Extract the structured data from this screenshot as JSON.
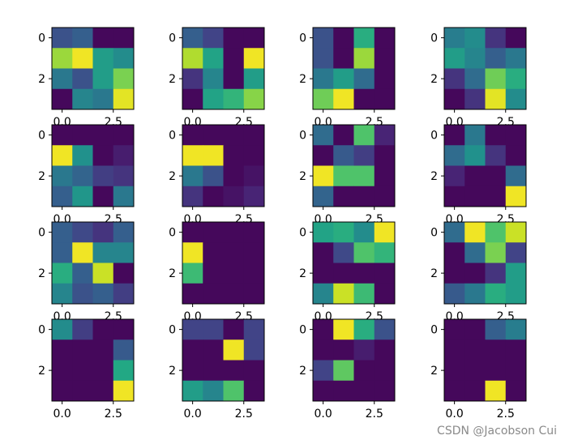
{
  "chart_data": {
    "type": "heatmap",
    "layout": {
      "rows": 4,
      "cols": 4
    },
    "colormap": "viridis",
    "value_range": [
      0,
      1
    ],
    "tick_labels": {
      "y": [
        "0",
        "2"
      ],
      "x": [
        "0.0",
        "2.5"
      ]
    },
    "panels": [
      [
        [
          0.25,
          0.3,
          0.02,
          0.02
        ],
        [
          0.85,
          0.98,
          0.55,
          0.48
        ],
        [
          0.4,
          0.25,
          0.55,
          0.8
        ],
        [
          0.02,
          0.45,
          0.4,
          0.96
        ]
      ],
      [
        [
          0.3,
          0.2,
          0.02,
          0.02
        ],
        [
          0.88,
          0.58,
          0.02,
          0.98
        ],
        [
          0.15,
          0.45,
          0.02,
          0.55
        ],
        [
          0.02,
          0.58,
          0.65,
          0.82
        ]
      ],
      [
        [
          0.25,
          0.02,
          0.62,
          0.02
        ],
        [
          0.25,
          0.02,
          0.85,
          0.02
        ],
        [
          0.4,
          0.55,
          0.35,
          0.02
        ],
        [
          0.78,
          0.98,
          0.02,
          0.02
        ]
      ],
      [
        [
          0.42,
          0.48,
          0.15,
          0.02
        ],
        [
          0.55,
          0.45,
          0.3,
          0.4
        ],
        [
          0.15,
          0.35,
          0.78,
          0.62
        ],
        [
          0.02,
          0.15,
          0.96,
          0.48
        ]
      ],
      [
        [
          0.02,
          0.02,
          0.02,
          0.02
        ],
        [
          0.98,
          0.5,
          0.02,
          0.08
        ],
        [
          0.4,
          0.32,
          0.18,
          0.15
        ],
        [
          0.3,
          0.52,
          0.02,
          0.4
        ]
      ],
      [
        [
          0.02,
          0.02,
          0.02,
          0.02
        ],
        [
          0.98,
          0.98,
          0.02,
          0.02
        ],
        [
          0.4,
          0.25,
          0.02,
          0.05
        ],
        [
          0.15,
          0.02,
          0.05,
          0.1
        ]
      ],
      [
        [
          0.35,
          0.02,
          0.72,
          0.1
        ],
        [
          0.02,
          0.28,
          0.18,
          0.02
        ],
        [
          0.98,
          0.72,
          0.72,
          0.02
        ],
        [
          0.32,
          0.02,
          0.02,
          0.02
        ]
      ],
      [
        [
          0.02,
          0.4,
          0.02,
          0.02
        ],
        [
          0.35,
          0.5,
          0.15,
          0.02
        ],
        [
          0.1,
          0.02,
          0.02,
          0.35
        ],
        [
          0.02,
          0.02,
          0.02,
          0.98
        ]
      ],
      [
        [
          0.3,
          0.22,
          0.15,
          0.3
        ],
        [
          0.3,
          0.98,
          0.45,
          0.45
        ],
        [
          0.62,
          0.3,
          0.92,
          0.02
        ],
        [
          0.45,
          0.25,
          0.3,
          0.18
        ]
      ],
      [
        [
          0.02,
          0.02,
          0.02,
          0.02
        ],
        [
          0.98,
          0.02,
          0.02,
          0.02
        ],
        [
          0.68,
          0.02,
          0.02,
          0.02
        ],
        [
          0.02,
          0.02,
          0.02,
          0.02
        ]
      ],
      [
        [
          0.58,
          0.62,
          0.48,
          0.98
        ],
        [
          0.02,
          0.22,
          0.72,
          0.65
        ],
        [
          0.02,
          0.02,
          0.02,
          0.02
        ],
        [
          0.45,
          0.92,
          0.68,
          0.02
        ]
      ],
      [
        [
          0.35,
          0.98,
          0.72,
          0.92
        ],
        [
          0.02,
          0.35,
          0.8,
          0.2
        ],
        [
          0.02,
          0.02,
          0.15,
          0.55
        ],
        [
          0.28,
          0.4,
          0.62,
          0.55
        ]
      ],
      [
        [
          0.48,
          0.18,
          0.02,
          0.02
        ],
        [
          0.02,
          0.02,
          0.02,
          0.28
        ],
        [
          0.02,
          0.02,
          0.02,
          0.6
        ],
        [
          0.02,
          0.02,
          0.02,
          0.98
        ]
      ],
      [
        [
          0.2,
          0.2,
          0.02,
          0.2
        ],
        [
          0.02,
          0.02,
          0.98,
          0.2
        ],
        [
          0.02,
          0.02,
          0.02,
          0.02
        ],
        [
          0.55,
          0.45,
          0.72,
          0.02
        ]
      ],
      [
        [
          0.02,
          0.98,
          0.62,
          0.25
        ],
        [
          0.02,
          0.02,
          0.08,
          0.02
        ],
        [
          0.2,
          0.75,
          0.02,
          0.02
        ],
        [
          0.02,
          0.02,
          0.02,
          0.02
        ]
      ],
      [
        [
          0.02,
          0.02,
          0.3,
          0.42
        ],
        [
          0.02,
          0.02,
          0.02,
          0.02
        ],
        [
          0.02,
          0.02,
          0.02,
          0.02
        ],
        [
          0.02,
          0.02,
          0.98,
          0.02
        ]
      ]
    ]
  },
  "watermark": "CSDN @Jacobson Cui"
}
